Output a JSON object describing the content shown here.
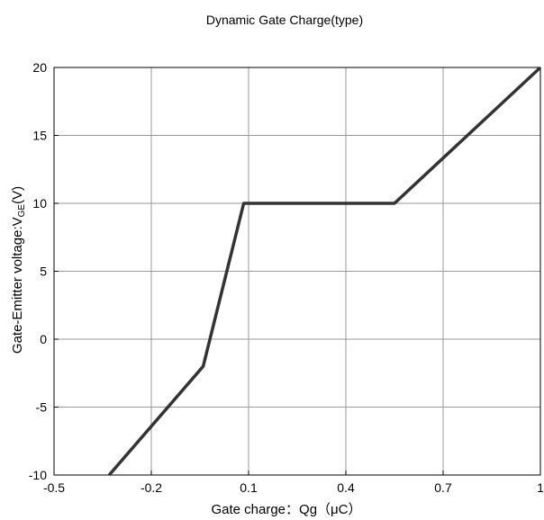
{
  "chart_data": {
    "type": "line",
    "title": "Dynamic Gate Charge(type)",
    "xlabel": "Gate charge：Qg（μC）",
    "ylabel_main": "Gate-Emitter voltage:V",
    "ylabel_sub": "GE",
    "ylabel_tail": "(V)",
    "xlim": [
      -0.5,
      1.0
    ],
    "ylim": [
      -10,
      20
    ],
    "x_ticks": [
      -0.5,
      -0.2,
      0.1,
      0.4,
      0.7,
      1.0
    ],
    "x_tick_labels": [
      "-0.5",
      "-0.2",
      "0.1",
      "0.4",
      "0.7",
      "1"
    ],
    "y_ticks": [
      -10,
      -5,
      0,
      5,
      10,
      15,
      20
    ],
    "y_tick_labels": [
      "-10",
      "-5",
      "0",
      "5",
      "10",
      "15",
      "20"
    ],
    "grid": true,
    "series": [
      {
        "color": "#333333",
        "x": [
          -0.33,
          -0.04,
          0.085,
          0.55,
          1.0
        ],
        "y": [
          -10,
          -2,
          10,
          10,
          20
        ]
      }
    ]
  }
}
